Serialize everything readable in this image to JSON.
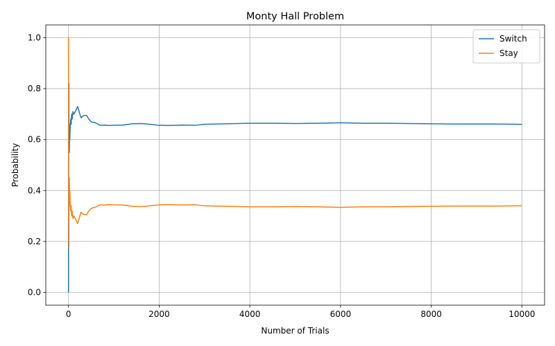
{
  "chart_data": {
    "type": "line",
    "title": "Monty Hall Problem",
    "xlabel": "Number of Trials",
    "ylabel": "Probability",
    "xlim": [
      -500,
      10500
    ],
    "ylim": [
      -0.05,
      1.05
    ],
    "xticks": [
      0,
      2000,
      4000,
      6000,
      8000,
      10000
    ],
    "xtick_labels": [
      "0",
      "2000",
      "4000",
      "6000",
      "8000",
      "10000"
    ],
    "yticks": [
      0.0,
      0.2,
      0.4,
      0.6,
      0.8,
      1.0
    ],
    "ytick_labels": [
      "0.0",
      "0.2",
      "0.4",
      "0.6",
      "0.8",
      "1.0"
    ],
    "grid": true,
    "legend_position": "top-right",
    "series": [
      {
        "name": "Switch",
        "color": "#1f77b4",
        "x": [
          1,
          3,
          5,
          8,
          10,
          12,
          15,
          18,
          20,
          25,
          30,
          40,
          50,
          60,
          70,
          80,
          100,
          120,
          150,
          180,
          200,
          220,
          250,
          280,
          300,
          350,
          400,
          450,
          500,
          600,
          700,
          800,
          900,
          1000,
          1200,
          1400,
          1600,
          1800,
          2000,
          2200,
          2500,
          2800,
          3000,
          3500,
          4000,
          4500,
          5000,
          5500,
          6000,
          6500,
          7000,
          7500,
          8000,
          8500,
          9000,
          9500,
          10000
        ],
        "y": [
          0.0,
          0.33,
          0.6,
          0.75,
          0.82,
          0.55,
          0.66,
          0.58,
          0.55,
          0.64,
          0.6,
          0.66,
          0.68,
          0.66,
          0.7,
          0.68,
          0.71,
          0.7,
          0.71,
          0.72,
          0.73,
          0.72,
          0.7,
          0.685,
          0.69,
          0.695,
          0.695,
          0.68,
          0.67,
          0.665,
          0.656,
          0.657,
          0.655,
          0.656,
          0.657,
          0.662,
          0.663,
          0.66,
          0.656,
          0.655,
          0.657,
          0.656,
          0.66,
          0.662,
          0.664,
          0.664,
          0.663,
          0.664,
          0.666,
          0.664,
          0.664,
          0.663,
          0.662,
          0.661,
          0.661,
          0.661,
          0.66
        ]
      },
      {
        "name": "Stay",
        "color": "#ff7f0e",
        "x": [
          1,
          3,
          5,
          8,
          10,
          12,
          15,
          18,
          20,
          25,
          30,
          40,
          50,
          60,
          70,
          80,
          100,
          120,
          150,
          180,
          200,
          220,
          250,
          280,
          300,
          350,
          400,
          450,
          500,
          600,
          700,
          800,
          900,
          1000,
          1200,
          1400,
          1600,
          1800,
          2000,
          2200,
          2500,
          2800,
          3000,
          3500,
          4000,
          4500,
          5000,
          5500,
          6000,
          6500,
          7000,
          7500,
          8000,
          8500,
          9000,
          9500,
          10000
        ],
        "y": [
          1.0,
          0.67,
          0.4,
          0.25,
          0.18,
          0.45,
          0.34,
          0.42,
          0.45,
          0.36,
          0.4,
          0.34,
          0.32,
          0.34,
          0.3,
          0.32,
          0.29,
          0.3,
          0.29,
          0.28,
          0.27,
          0.28,
          0.3,
          0.315,
          0.31,
          0.305,
          0.305,
          0.32,
          0.33,
          0.335,
          0.344,
          0.343,
          0.345,
          0.344,
          0.343,
          0.338,
          0.337,
          0.34,
          0.344,
          0.345,
          0.343,
          0.344,
          0.34,
          0.338,
          0.336,
          0.336,
          0.337,
          0.336,
          0.334,
          0.336,
          0.336,
          0.337,
          0.338,
          0.339,
          0.339,
          0.339,
          0.34
        ]
      }
    ]
  }
}
